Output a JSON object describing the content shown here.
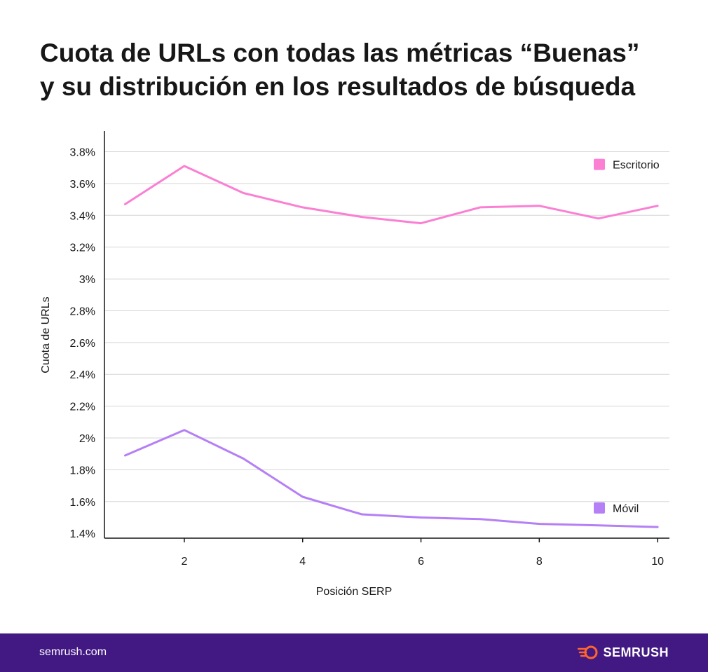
{
  "title_lines": [
    "Cuota de URLs con todas las métricas “Buenas”",
    "y su distribución en los resultados de búsqueda"
  ],
  "footer": {
    "site": "semrush.com",
    "brand": "SEMRUSH"
  },
  "chart_data": {
    "type": "line",
    "xlabel": "Posición SERP",
    "ylabel": "Cuota de URLs",
    "x": [
      1,
      2,
      3,
      4,
      5,
      6,
      7,
      8,
      9,
      10
    ],
    "xticks": [
      2,
      4,
      6,
      8,
      10
    ],
    "xlim": [
      0.65,
      10.2
    ],
    "yticks": [
      1.4,
      1.6,
      1.8,
      2.0,
      2.2,
      2.4,
      2.6,
      2.8,
      3.0,
      3.2,
      3.4,
      3.6,
      3.8
    ],
    "ytick_labels": [
      "1.4%",
      "1.6%",
      "1.8%",
      "2%",
      "2.2%",
      "2.4%",
      "2.6%",
      "2.8%",
      "3%",
      "3.2%",
      "3.4%",
      "3.6%",
      "3.8%"
    ],
    "ylim": [
      1.37,
      3.93
    ],
    "grid": true,
    "legend": "inline-right",
    "series": [
      {
        "name": "Escritorio",
        "color": "#fb7fd3",
        "values": [
          3.47,
          3.71,
          3.54,
          3.45,
          3.39,
          3.35,
          3.45,
          3.46,
          3.38,
          3.46
        ]
      },
      {
        "name": "Móvil",
        "color": "#b57ff6",
        "values": [
          1.89,
          2.05,
          1.87,
          1.63,
          1.52,
          1.5,
          1.49,
          1.46,
          1.45,
          1.44
        ]
      }
    ]
  }
}
